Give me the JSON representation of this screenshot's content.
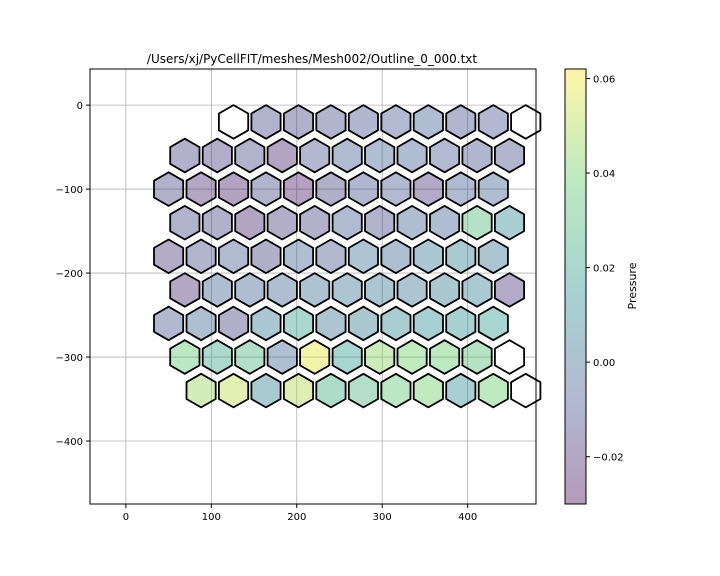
{
  "chart_data": {
    "type": "heatmap",
    "subtype": "cell-mesh-polygons",
    "title": "/Users/xj/PyCellFIT/meshes/Mesh002/Outline_0_000.txt",
    "xlim": [
      -42,
      480
    ],
    "ylim": [
      -475,
      43
    ],
    "x_ticks": [
      0,
      100,
      200,
      300,
      400
    ],
    "y_ticks": [
      0,
      -100,
      -200,
      -300,
      -400
    ],
    "x_tick_labels": [
      "0",
      "100",
      "200",
      "300",
      "400"
    ],
    "y_tick_labels": [
      "0",
      "−100",
      "−200",
      "−300",
      "−400"
    ],
    "grid": true,
    "colorbar": {
      "label": "Pressure",
      "min": -0.03,
      "max": 0.062,
      "ticks": [
        -0.02,
        0.0,
        0.02,
        0.04,
        0.06
      ],
      "tick_labels": [
        "−0.02",
        "0.00",
        "0.02",
        "0.04",
        "0.06"
      ],
      "colormap": "viridis",
      "alpha": 0.4
    },
    "cell_grid": {
      "x_start": 50,
      "x_step": 38,
      "y_start": -20,
      "y_step": -40,
      "row_stagger": 19,
      "rows": [
        {
          "offset": 2,
          "pressure": [
            null,
            -0.012,
            -0.013,
            -0.011,
            -0.009,
            -0.007,
            -0.005,
            -0.01,
            -0.008,
            null
          ]
        },
        {
          "offset": 0,
          "pressure": [
            -0.014,
            -0.016,
            -0.012,
            -0.022,
            -0.008,
            -0.006,
            -0.003,
            -0.005,
            -0.007,
            -0.009,
            -0.01
          ]
        },
        {
          "offset": 0,
          "pressure": [
            -0.013,
            -0.02,
            -0.024,
            -0.011,
            -0.025,
            -0.015,
            -0.009,
            -0.007,
            -0.018,
            -0.006,
            -0.004
          ]
        },
        {
          "offset": 0,
          "pressure": [
            -0.012,
            -0.013,
            -0.022,
            -0.016,
            -0.014,
            -0.006,
            -0.012,
            -0.004,
            -0.005,
            0.03,
            0.01
          ]
        },
        {
          "offset": 0,
          "pressure": [
            -0.017,
            -0.01,
            -0.006,
            -0.015,
            -0.003,
            -0.008,
            0.002,
            -0.002,
            0.005,
            0.008,
            0.004
          ]
        },
        {
          "offset": 0,
          "pressure": [
            -0.02,
            -0.004,
            -0.005,
            -0.003,
            0.001,
            0.002,
            0.004,
            0.003,
            0.006,
            0.007,
            -0.018
          ]
        },
        {
          "offset": 0,
          "pressure": [
            -0.008,
            -0.002,
            -0.015,
            0.005,
            0.02,
            0.003,
            0.006,
            0.01,
            0.012,
            0.015,
            0.018
          ]
        },
        {
          "offset": 0,
          "pressure": [
            0.036,
            0.022,
            0.028,
            -0.002,
            0.058,
            0.018,
            0.044,
            0.04,
            0.038,
            0.032,
            null
          ]
        },
        {
          "offset": 1,
          "pressure": [
            0.046,
            0.052,
            0.008,
            0.05,
            0.024,
            0.028,
            0.036,
            0.04,
            0.012,
            0.038,
            null
          ]
        }
      ],
      "empty_boundary_cells": [
        [
          1,
          0
        ],
        [
          10,
          0
        ],
        [
          8,
          8
        ]
      ]
    }
  }
}
